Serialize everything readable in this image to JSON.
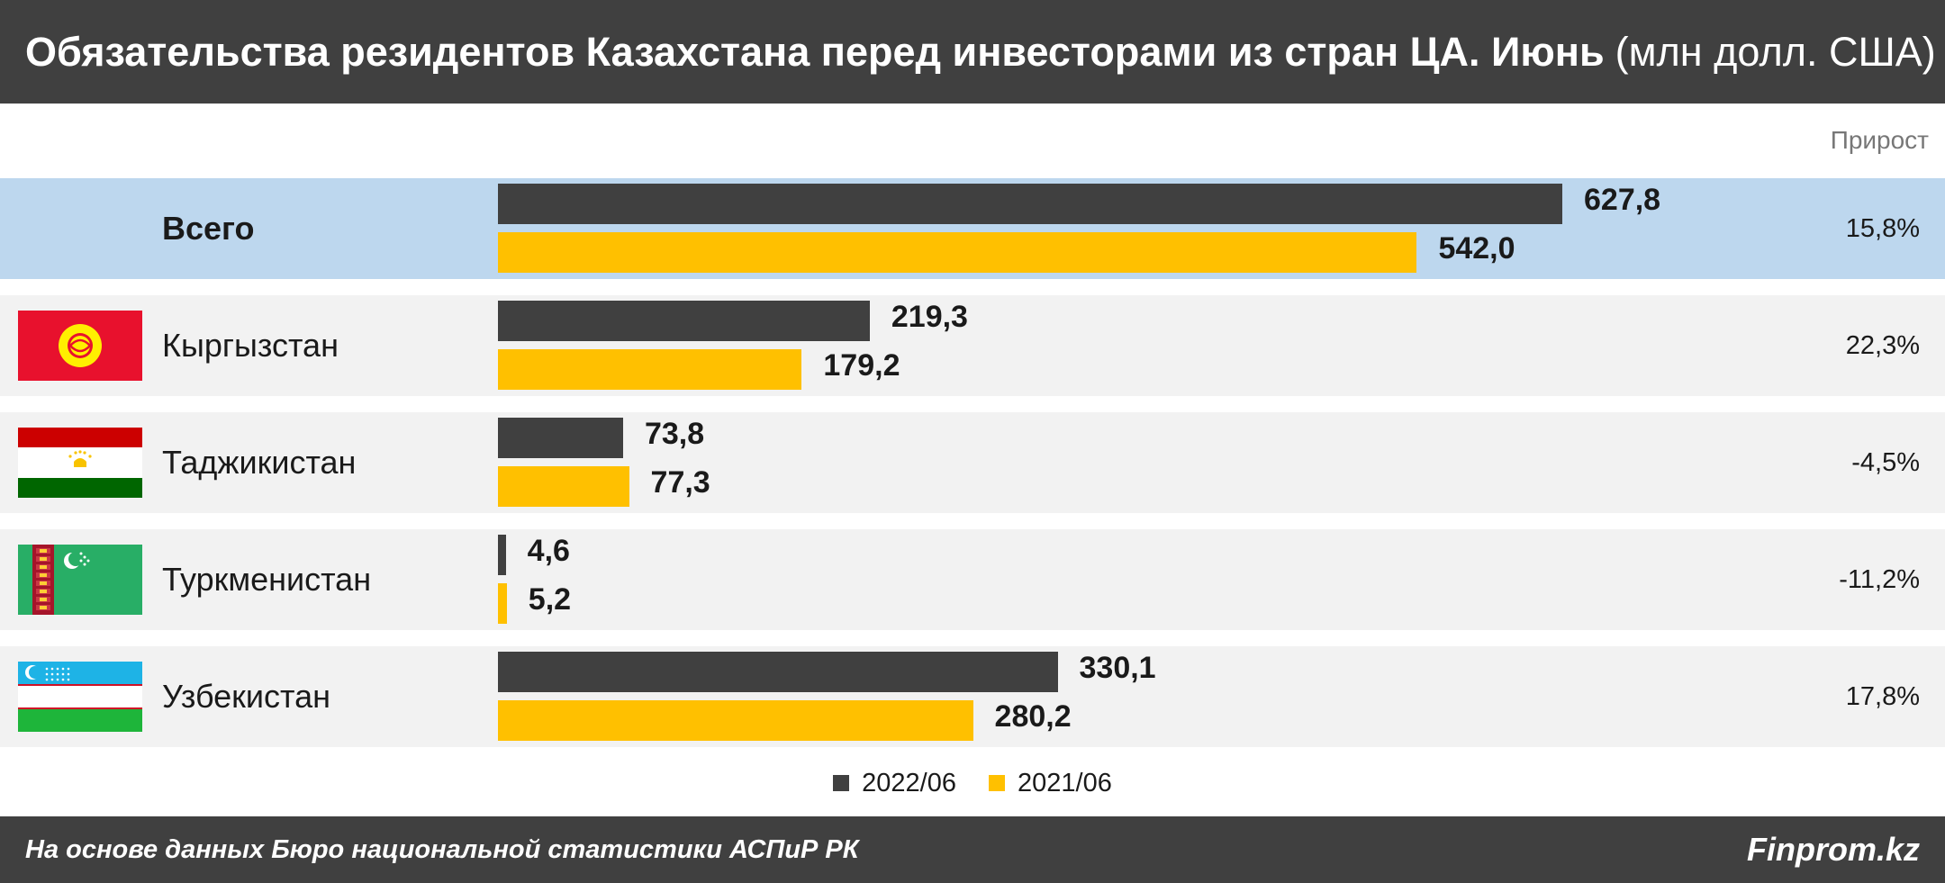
{
  "header": {
    "title_main": "Обязательства резидентов Казахстана перед инвесторами из стран ЦА. Июнь",
    "title_unit": "(млн долл. США)"
  },
  "growth_header": "Прирост",
  "colors": {
    "series_2022": "#404040",
    "series_2021": "#FFC000",
    "highlight_row": "#BDD7EE",
    "alt_row": "#F2F2F2",
    "header_bg": "#404040"
  },
  "chart_data": {
    "type": "bar",
    "orientation": "horizontal",
    "categories": [
      "Всего",
      "Кыргызстан",
      "Таджикистан",
      "Туркменистан",
      "Узбекистан"
    ],
    "series": [
      {
        "name": "2022/06",
        "values": [
          627.8,
          219.3,
          73.8,
          4.6,
          330.1
        ],
        "labels": [
          "627,8",
          "219,3",
          "73,8",
          "4,6",
          "330,1"
        ]
      },
      {
        "name": "2021/06",
        "values": [
          542.0,
          179.2,
          77.3,
          5.2,
          280.2
        ],
        "labels": [
          "542,0",
          "179,2",
          "77,3",
          "5,2",
          "280,2"
        ]
      }
    ],
    "growth": [
      "15,8%",
      "22,3%",
      "-4,5%",
      "-11,2%",
      "17,8%"
    ],
    "flags": [
      null,
      "kyrgyzstan-flag",
      "tajikistan-flag",
      "turkmenistan-flag",
      "uzbekistan-flag"
    ],
    "legend_position": "bottom-center",
    "grid": false
  },
  "footer": {
    "source": "На основе данных Бюро национальной статистики АСПиР РК",
    "brand": "Finprom.kz"
  }
}
